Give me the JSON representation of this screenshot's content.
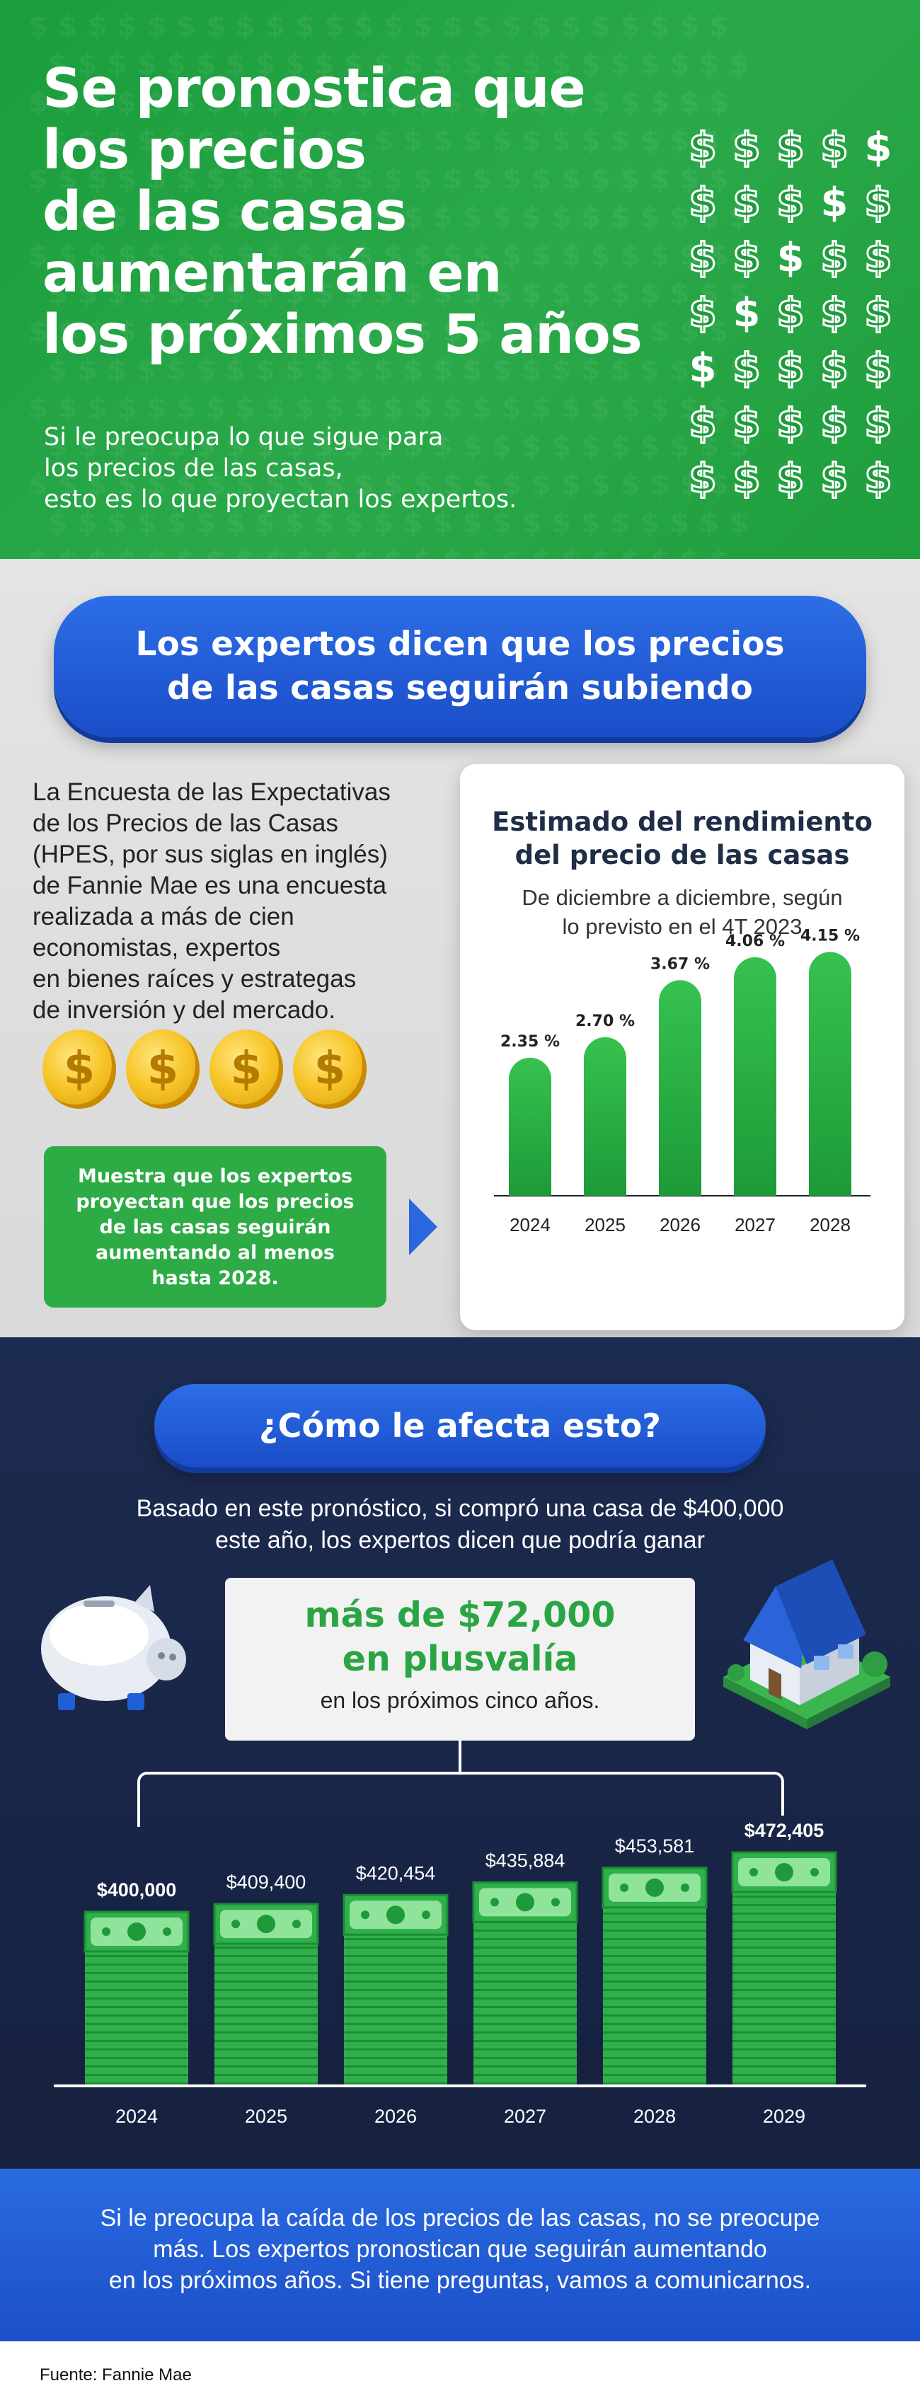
{
  "hero": {
    "title_lines": [
      "Se pronostica que",
      "los precios",
      "de las casas",
      "aumentarán en",
      "los próximos 5 años"
    ],
    "subtitle_lines": [
      "Si le preocupa lo que sigue para",
      "los precios de las casas,",
      "esto es lo que proyectan los expertos."
    ],
    "symbol": "$"
  },
  "experts": {
    "heading_lines": [
      "Los expertos dicen que los precios",
      "de las casas seguirán subiendo"
    ],
    "description_lines": [
      "La Encuesta de las Expectativas",
      "de los Precios de las Casas",
      "(HPES, por sus siglas en inglés)",
      "de Fannie Mae es una encuesta",
      "realizada a más de cien",
      "economistas, expertos",
      "en bienes raíces y estrategas",
      "de inversión y del mercado."
    ],
    "callout_lines": [
      "Muestra que los expertos",
      "proyectan que los precios",
      "de las casas seguirán",
      "aumentando al menos",
      "hasta 2028."
    ]
  },
  "chart_data": [
    {
      "type": "bar",
      "title": "Estimado del rendimiento del precio de las casas",
      "subtitle": "De diciembre a diciembre, según lo previsto en el 4T 2023",
      "title_lines": [
        "Estimado del rendimiento",
        "del precio de las casas"
      ],
      "subtitle_lines": [
        "De diciembre a diciembre, según",
        "lo previsto en el 4T 2023"
      ],
      "categories": [
        "2024",
        "2025",
        "2026",
        "2027",
        "2028"
      ],
      "values": [
        2.35,
        2.7,
        3.67,
        4.06,
        4.15
      ],
      "data_labels": [
        "2.35 %",
        "2.70 %",
        "3.67 %",
        "4.06 %",
        "4.15 %"
      ],
      "ylim": [
        0,
        4.5
      ],
      "color": "#2aa844"
    },
    {
      "type": "bar",
      "categories": [
        "2024",
        "2025",
        "2026",
        "2027",
        "2028",
        "2029"
      ],
      "values": [
        400000,
        409400,
        420454,
        435884,
        453581,
        472405
      ],
      "data_labels": [
        "$400,000",
        "$409,400",
        "$420,454",
        "$435,884",
        "$453,581",
        "$472,405"
      ],
      "ylim": [
        0,
        472405
      ],
      "color": "#2aa844"
    }
  ],
  "affect": {
    "heading": "¿Cómo le afecta esto?",
    "intro_lines": [
      "Basado en este pronóstico, si compró una casa de $400,000",
      "este año, los expertos dicen que podría ganar"
    ],
    "big_lines": [
      "más de $72,000",
      "en plusvalía"
    ],
    "small": "en los próximos cinco años."
  },
  "closing": {
    "lines": [
      "Si le preocupa la caída de los precios de las casas, no se preocupe",
      "más. Los expertos pronostican que seguirán aumentando",
      "en los próximos años. Si tiene preguntas, vamos a comunicarnos."
    ]
  },
  "source": "Fuente: Fannie Mae",
  "icons": [
    "dollar-sign-icon",
    "coin-icon",
    "piggy-bank-icon",
    "house-icon",
    "money-stack-icon",
    "arrow-right-icon"
  ],
  "colors": {
    "green": "#2aa844",
    "blue": "#1f55cf",
    "navy": "#1b2a4e"
  }
}
